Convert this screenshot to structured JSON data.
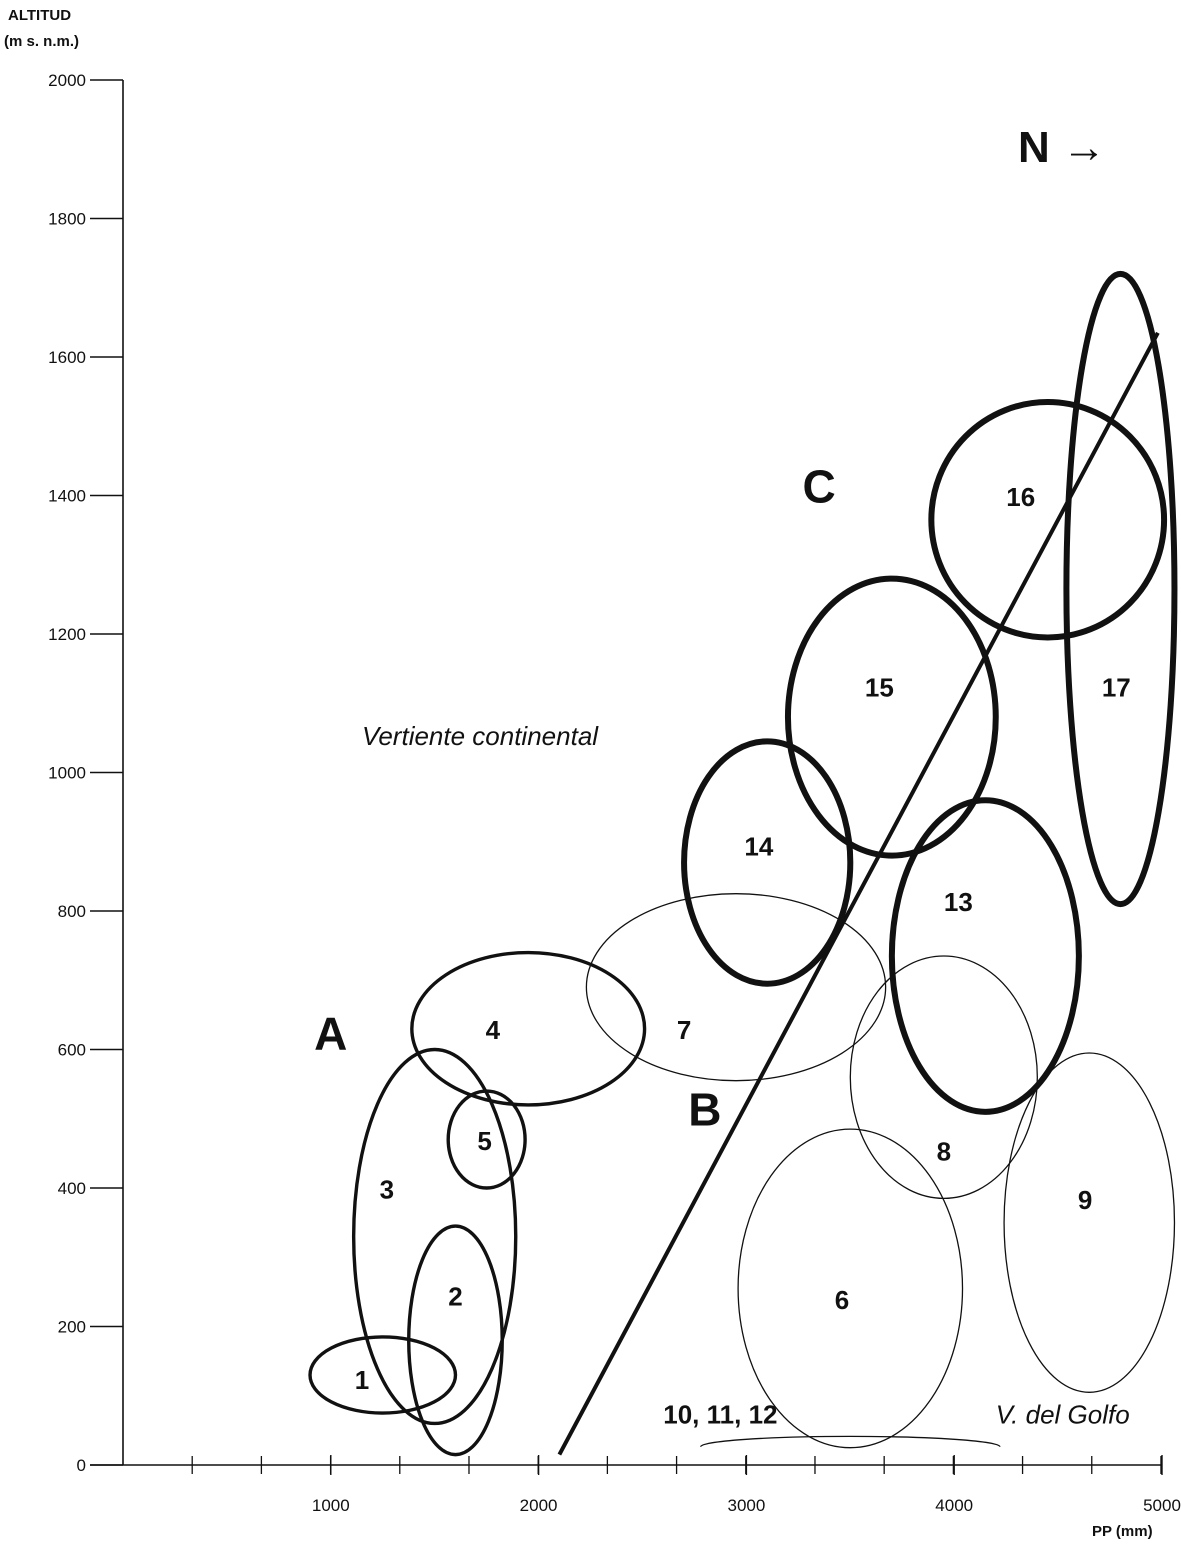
{
  "chart_data": {
    "type": "scatter",
    "ylabel_line1": "ALTITUD",
    "ylabel_line2": "(m s. n.m.)",
    "xlabel": "PP (mm)",
    "xlim": [
      0,
      5000
    ],
    "ylim": [
      0,
      2000
    ],
    "xticks": [
      1000,
      2000,
      3000,
      4000,
      5000
    ],
    "yticks": [
      0,
      200,
      400,
      600,
      800,
      1000,
      1200,
      1400,
      1600,
      1800,
      2000
    ],
    "x_minor_step": 333,
    "grid": false,
    "clusters": [
      {
        "label": "1",
        "x": 1250,
        "y": 130,
        "rx": 350,
        "ry": 55,
        "weight": "medium"
      },
      {
        "label": "2",
        "x": 1600,
        "y": 180,
        "rx": 225,
        "ry": 165,
        "weight": "medium"
      },
      {
        "label": "3",
        "x": 1500,
        "y": 330,
        "rx": 390,
        "ry": 270,
        "weight": "medium"
      },
      {
        "label": "4",
        "x": 1950,
        "y": 630,
        "rx": 560,
        "ry": 110,
        "weight": "medium"
      },
      {
        "label": "5",
        "x": 1750,
        "y": 470,
        "rx": 185,
        "ry": 70,
        "weight": "medium"
      },
      {
        "label": "6",
        "x": 3500,
        "y": 255,
        "rx": 540,
        "ry": 230,
        "weight": "thin"
      },
      {
        "label": "7",
        "x": 2950,
        "y": 690,
        "rx": 720,
        "ry": 135,
        "weight": "thin"
      },
      {
        "label": "8",
        "x": 3950,
        "y": 560,
        "rx": 450,
        "ry": 175,
        "weight": "thin"
      },
      {
        "label": "9",
        "x": 4650,
        "y": 350,
        "rx": 410,
        "ry": 245,
        "weight": "thin"
      },
      {
        "label": "13",
        "x": 4150,
        "y": 735,
        "rx": 450,
        "ry": 225,
        "weight": "thick"
      },
      {
        "label": "14",
        "x": 3100,
        "y": 870,
        "rx": 400,
        "ry": 175,
        "weight": "thick"
      },
      {
        "label": "15",
        "x": 3700,
        "y": 1080,
        "rx": 500,
        "ry": 200,
        "weight": "thick"
      },
      {
        "label": "16",
        "x": 4450,
        "y": 1365,
        "rx": 560,
        "ry": 170,
        "weight": "thick"
      },
      {
        "label": "17",
        "x": 4800,
        "y": 1265,
        "rx": 260,
        "ry": 455,
        "weight": "thick"
      }
    ],
    "extra_points": [
      {
        "label": "10, 11, 12",
        "x": 3500,
        "y": 35,
        "rx": 720,
        "ry": 15,
        "weight": "thin"
      }
    ],
    "zones": [
      {
        "label": "A",
        "x": 1000,
        "y": 600
      },
      {
        "label": "B",
        "x": 2800,
        "y": 490
      },
      {
        "label": "C",
        "x": 3350,
        "y": 1390
      }
    ],
    "regions": [
      {
        "label": "Vertiente continental",
        "x": 1150,
        "y": 1040
      },
      {
        "label": "V. del Golfo",
        "x": 4200,
        "y": 60
      }
    ],
    "north_indicator": "N →",
    "divider_line": {
      "x1": 2100,
      "y1": 15,
      "x2": 4980,
      "y2": 1635
    }
  }
}
